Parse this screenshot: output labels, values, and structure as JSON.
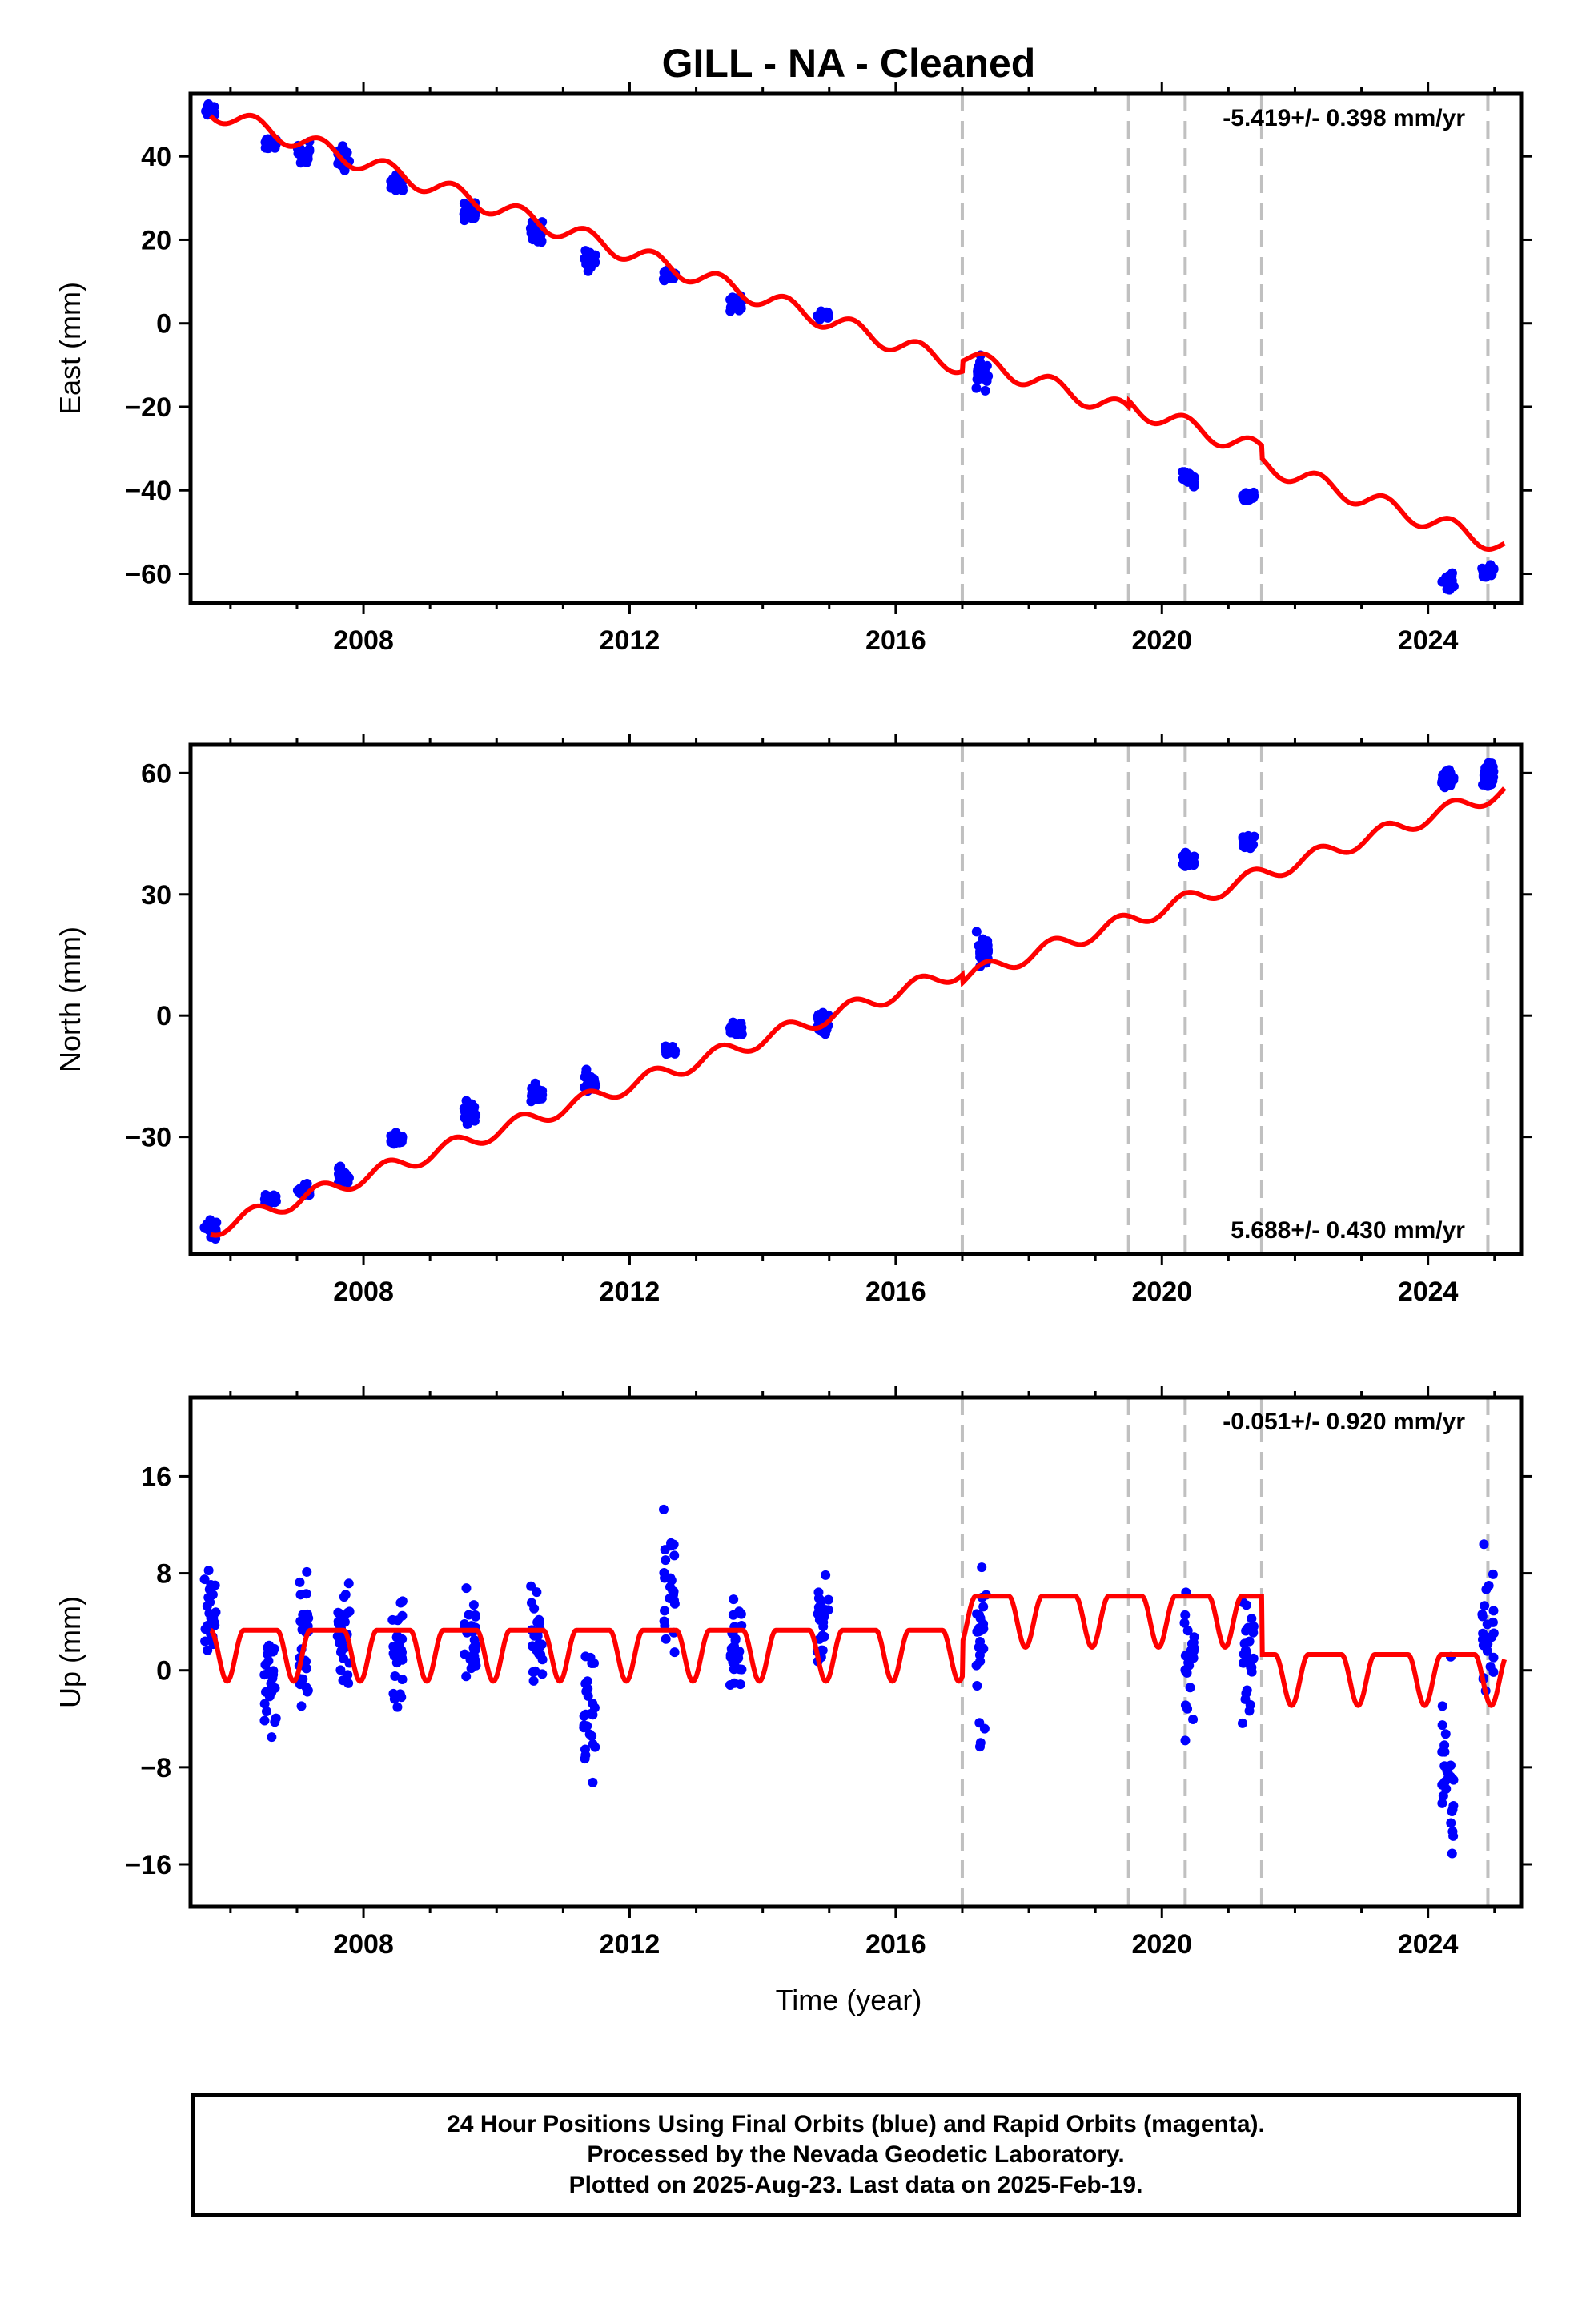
{
  "title": "GILL  - NA - Cleaned",
  "xlabel": "Time (year)",
  "footer": {
    "line1": "24 Hour Positions Using Final Orbits (blue) and Rapid Orbits (magenta).",
    "line2": "Processed by the Nevada Geodetic Laboratory.",
    "line3": "Plotted on 2025-Aug-23. Last data on 2025-Feb-19."
  },
  "colors": {
    "data": "#0000ff",
    "model": "#ff0000",
    "breaks": "#c0c0c0"
  },
  "chart_data": [
    {
      "type": "scatter",
      "ylabel": "East (mm)",
      "rate_label": "-5.419+/- 0.398 mm/yr",
      "rate_position": "top-right",
      "xlim": [
        2005.4,
        2025.4
      ],
      "ylim": [
        -67,
        55
      ],
      "xticks": [
        2008,
        2012,
        2016,
        2020,
        2024
      ],
      "yticks": [
        -60,
        -40,
        -20,
        0,
        20,
        40
      ],
      "breaks": [
        2017.0,
        2019.5,
        2020.35,
        2021.5,
        2024.9
      ],
      "model": {
        "rate": -5.419,
        "intercept": 51.0,
        "ref_year": 2005.7,
        "annual_amp": 2.2,
        "steps": [
          {
            "year": 2017.0,
            "offset": 2.5
          },
          {
            "year": 2019.5,
            "offset": 1.5
          },
          {
            "year": 2021.5,
            "offset": -3.0
          }
        ]
      },
      "clusters": [
        {
          "year": 2005.7,
          "center": 51.0,
          "spread": 1.2
        },
        {
          "year": 2006.6,
          "center": 43.0,
          "spread": 1.2
        },
        {
          "year": 2007.1,
          "center": 41.0,
          "spread": 2.0
        },
        {
          "year": 2007.7,
          "center": 39.5,
          "spread": 2.5
        },
        {
          "year": 2008.5,
          "center": 33.0,
          "spread": 2.0
        },
        {
          "year": 2009.6,
          "center": 27.0,
          "spread": 2.0
        },
        {
          "year": 2010.6,
          "center": 22.0,
          "spread": 2.0
        },
        {
          "year": 2011.4,
          "center": 15.0,
          "spread": 3.0
        },
        {
          "year": 2012.6,
          "center": 11.5,
          "spread": 1.0
        },
        {
          "year": 2013.6,
          "center": 5.0,
          "spread": 2.5
        },
        {
          "year": 2014.9,
          "center": 2.0,
          "spread": 1.0
        },
        {
          "year": 2017.3,
          "center": -12.0,
          "spread": 3.0
        },
        {
          "year": 2020.4,
          "center": -37.0,
          "spread": 1.5
        },
        {
          "year": 2021.3,
          "center": -41.5,
          "spread": 1.0
        },
        {
          "year": 2024.3,
          "center": -61.5,
          "spread": 2.0
        },
        {
          "year": 2024.9,
          "center": -59.5,
          "spread": 1.5
        }
      ]
    },
    {
      "type": "scatter",
      "ylabel": "North (mm)",
      "rate_label": "5.688+/- 0.430 mm/yr",
      "rate_position": "bottom-right",
      "xlim": [
        2005.4,
        2025.4
      ],
      "ylim": [
        -59,
        67
      ],
      "xticks": [
        2008,
        2012,
        2016,
        2020,
        2024
      ],
      "yticks": [
        -30,
        0,
        30,
        60
      ],
      "breaks": [
        2017.0,
        2019.5,
        2020.35,
        2021.5,
        2024.9
      ],
      "model": {
        "rate": 5.688,
        "intercept": -53.0,
        "ref_year": 2005.7,
        "annual_amp": 2.0,
        "steps": [
          {
            "year": 2017.0,
            "offset": -2.0
          }
        ]
      },
      "clusters": [
        {
          "year": 2005.7,
          "center": -53.0,
          "spread": 2.0
        },
        {
          "year": 2006.6,
          "center": -45.5,
          "spread": 1.0
        },
        {
          "year": 2007.1,
          "center": -43.5,
          "spread": 1.5
        },
        {
          "year": 2007.7,
          "center": -40.0,
          "spread": 2.0
        },
        {
          "year": 2008.5,
          "center": -31.0,
          "spread": 1.5
        },
        {
          "year": 2009.6,
          "center": -24.0,
          "spread": 2.5
        },
        {
          "year": 2010.6,
          "center": -19.5,
          "spread": 2.0
        },
        {
          "year": 2011.4,
          "center": -16.0,
          "spread": 2.5
        },
        {
          "year": 2012.6,
          "center": -8.5,
          "spread": 1.0
        },
        {
          "year": 2013.6,
          "center": -3.5,
          "spread": 1.5
        },
        {
          "year": 2014.9,
          "center": -2.0,
          "spread": 2.0
        },
        {
          "year": 2017.3,
          "center": 16.0,
          "spread": 3.5
        },
        {
          "year": 2020.4,
          "center": 38.5,
          "spread": 1.5
        },
        {
          "year": 2021.3,
          "center": 43.0,
          "spread": 1.5
        },
        {
          "year": 2024.3,
          "center": 58.5,
          "spread": 2.0
        },
        {
          "year": 2024.9,
          "center": 60.0,
          "spread": 2.5
        }
      ]
    },
    {
      "type": "scatter",
      "ylabel": "Up (mm)",
      "xlabel": "Time (year)",
      "rate_label": "-0.051+/- 0.920 mm/yr",
      "rate_position": "top-right",
      "xlim": [
        2005.4,
        2025.4
      ],
      "ylim": [
        -19.5,
        22.5
      ],
      "xticks": [
        2008,
        2012,
        2016,
        2020,
        2024
      ],
      "yticks": [
        -16,
        -8,
        0,
        8,
        16
      ],
      "breaks": [
        2017.0,
        2019.5,
        2020.35,
        2021.5,
        2024.9
      ],
      "model": {
        "rate": -0.051,
        "intercept": 0.0,
        "ref_year": 2005.7,
        "annual_amp": 3.8,
        "steps": [
          {
            "year": 2005.4,
            "offset": 0.0
          },
          {
            "year": 2017.0,
            "offset": 2.8
          },
          {
            "year": 2021.5,
            "offset": -4.8
          }
        ]
      },
      "clusters": [
        {
          "year": 2005.7,
          "center": 4.5,
          "spread": 3.0
        },
        {
          "year": 2006.6,
          "center": 0.0,
          "spread": 5.0
        },
        {
          "year": 2007.1,
          "center": 2.5,
          "spread": 6.0
        },
        {
          "year": 2007.7,
          "center": 2.5,
          "spread": 5.5
        },
        {
          "year": 2008.5,
          "center": 2.0,
          "spread": 4.5
        },
        {
          "year": 2009.6,
          "center": 2.5,
          "spread": 4.0
        },
        {
          "year": 2010.6,
          "center": 3.0,
          "spread": 4.5
        },
        {
          "year": 2011.4,
          "center": -3.5,
          "spread": 5.0
        },
        {
          "year": 2012.6,
          "center": 7.0,
          "spread": 5.0
        },
        {
          "year": 2013.6,
          "center": 1.5,
          "spread": 4.5
        },
        {
          "year": 2014.9,
          "center": 5.0,
          "spread": 4.0
        },
        {
          "year": 2017.3,
          "center": 1.0,
          "spread": 6.5
        },
        {
          "year": 2020.4,
          "center": 0.0,
          "spread": 4.0
        },
        {
          "year": 2021.3,
          "center": 1.5,
          "spread": 4.5
        },
        {
          "year": 2024.3,
          "center": -8.0,
          "spread": 6.0
        },
        {
          "year": 2024.9,
          "center": 2.0,
          "spread": 6.0
        }
      ]
    }
  ]
}
